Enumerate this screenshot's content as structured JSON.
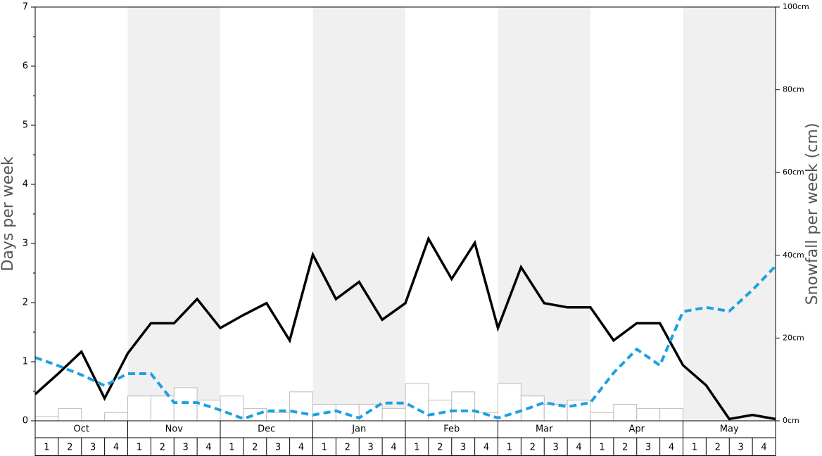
{
  "chart_data": {
    "type": "line",
    "y_label": "Days per week",
    "y2_label": "Snowfall per week (cm)",
    "months": [
      "Oct",
      "Nov",
      "Dec",
      "Jan",
      "Feb",
      "Mar",
      "Apr",
      "May"
    ],
    "weeks": [
      "1",
      "2",
      "3",
      "4"
    ],
    "ylim": [
      0,
      7
    ],
    "yticks": [
      0,
      1,
      2,
      3,
      4,
      5,
      6,
      7
    ],
    "y2lim": [
      0,
      100
    ],
    "y2ticks": [
      {
        "value": 0,
        "label": "0cm"
      },
      {
        "value": 20,
        "label": "20cm"
      },
      {
        "value": 40,
        "label": "40cm"
      },
      {
        "value": 60,
        "label": "60cm"
      },
      {
        "value": 80,
        "label": "80cm"
      },
      {
        "value": 100,
        "label": "100cm"
      }
    ],
    "series": [
      {
        "kind": "bar",
        "color": "#ffffff",
        "values": [
          0.07,
          0.21,
          0,
          0.14,
          0.42,
          0.42,
          0.56,
          0.35,
          0.42,
          0.21,
          0.14,
          0.49,
          0.28,
          0.28,
          0.28,
          0.21,
          0.63,
          0.35,
          0.49,
          0.14,
          0.63,
          0.42,
          0.28,
          0.35,
          0.14,
          0.28,
          0.21,
          0.21,
          0,
          0,
          0,
          0
        ]
      },
      {
        "kind": "line",
        "color": "#000000",
        "values": [
          0.45,
          0.8,
          1.17,
          0.38,
          1.14,
          1.65,
          1.65,
          2.06,
          1.57,
          1.79,
          1.99,
          1.36,
          2.81,
          2.06,
          2.35,
          1.71,
          1.99,
          3.08,
          2.4,
          3.01,
          1.57,
          2.6,
          1.99,
          1.92,
          1.92,
          1.36,
          1.65,
          1.65,
          0.94,
          0.6,
          0.03,
          0.1,
          0.03
        ]
      },
      {
        "kind": "line",
        "axis": "y2",
        "dashed": true,
        "color": "#1ea0e0",
        "values": [
          15.3,
          13.3,
          11.1,
          8.5,
          11.4,
          11.4,
          4.4,
          4.4,
          2.6,
          0.5,
          2.4,
          2.4,
          1.4,
          2.4,
          0.7,
          4.3,
          4.3,
          1.4,
          2.4,
          2.4,
          0.7,
          2.4,
          4.4,
          3.4,
          4.4,
          11.6,
          17.3,
          13.4,
          26.4,
          27.4,
          26.5,
          31.6,
          37.4
        ]
      }
    ]
  }
}
